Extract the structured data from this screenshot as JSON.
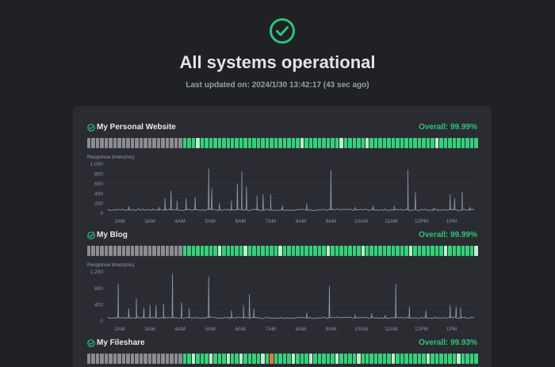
{
  "hero": {
    "title": "All systems operational",
    "updated": "Last updated on: 2024/1/30 13:42:17 (43 sec ago)",
    "icon": "check-circle-icon",
    "accent": "#2fc27a"
  },
  "chart_axis": {
    "ylabel": "Response times(ms)",
    "x_ticks": [
      "2AM",
      "3AM",
      "4AM",
      "5AM",
      "6AM",
      "7AM",
      "8AM",
      "9AM",
      "10AM",
      "11AM",
      "12PM",
      "1PM"
    ]
  },
  "monitors": [
    {
      "name": "My Personal Website",
      "overall": "Overall: 99.99%",
      "status_icon": "check-circle-icon",
      "heartbeat": {
        "empty_count": 22,
        "up_colors": "#35d07a",
        "light_positions": [
          3,
          27,
          36,
          42,
          58,
          70
        ]
      }
    },
    {
      "name": "My Blog",
      "overall": "Overall: 99.99%",
      "status_icon": "check-circle-icon",
      "heartbeat": {
        "empty_count": 22,
        "up_colors": "#35d07a",
        "light_positions": [
          8,
          14,
          22,
          33,
          41,
          52,
          60,
          67
        ]
      }
    },
    {
      "name": "My Fileshare",
      "overall": "Overall: 99.93%",
      "status_icon": "check-circle-icon",
      "heartbeat": {
        "empty_count": 22,
        "up_colors": "#35d07a",
        "light_positions": [
          2,
          6,
          10,
          13,
          18,
          25,
          29,
          35,
          40,
          48,
          56,
          63
        ],
        "warn_positions": [
          20
        ]
      }
    }
  ],
  "chart_data": [
    {
      "type": "line",
      "title": "",
      "ylabel": "Response times(ms)",
      "y_ticks": [
        "1,000",
        "800",
        "600",
        "400",
        "200",
        "0"
      ],
      "ylim": [
        0,
        1000
      ],
      "x_ticks": [
        "2AM",
        "3AM",
        "4AM",
        "5AM",
        "6AM",
        "7AM",
        "8AM",
        "9AM",
        "10AM",
        "11AM",
        "12PM",
        "1PM"
      ],
      "xlim": [
        1.5,
        13.8
      ],
      "baseline": 70,
      "spikes": [
        {
          "x": 2.3,
          "y": 130
        },
        {
          "x": 3.3,
          "y": 120
        },
        {
          "x": 3.5,
          "y": 300
        },
        {
          "x": 3.7,
          "y": 450
        },
        {
          "x": 3.9,
          "y": 250
        },
        {
          "x": 4.2,
          "y": 300
        },
        {
          "x": 4.5,
          "y": 320
        },
        {
          "x": 4.95,
          "y": 900
        },
        {
          "x": 5.05,
          "y": 500
        },
        {
          "x": 5.3,
          "y": 200
        },
        {
          "x": 5.7,
          "y": 250
        },
        {
          "x": 5.9,
          "y": 600
        },
        {
          "x": 6.05,
          "y": 850
        },
        {
          "x": 6.2,
          "y": 550
        },
        {
          "x": 6.55,
          "y": 350
        },
        {
          "x": 6.75,
          "y": 380
        },
        {
          "x": 7.0,
          "y": 380
        },
        {
          "x": 7.4,
          "y": 150
        },
        {
          "x": 8.2,
          "y": 180
        },
        {
          "x": 9.0,
          "y": 880
        },
        {
          "x": 9.8,
          "y": 120
        },
        {
          "x": 10.4,
          "y": 150
        },
        {
          "x": 11.1,
          "y": 140
        },
        {
          "x": 11.55,
          "y": 880
        },
        {
          "x": 11.8,
          "y": 420
        },
        {
          "x": 12.4,
          "y": 110
        },
        {
          "x": 12.95,
          "y": 380
        },
        {
          "x": 13.1,
          "y": 300
        },
        {
          "x": 13.35,
          "y": 430
        },
        {
          "x": 13.6,
          "y": 120
        }
      ]
    },
    {
      "type": "line",
      "title": "",
      "ylabel": "Response times(ms)",
      "y_ticks": [
        "1,200",
        "800",
        "400",
        "0"
      ],
      "ylim": [
        0,
        1200
      ],
      "x_ticks": [
        "2AM",
        "3AM",
        "4AM",
        "5AM",
        "6AM",
        "7AM",
        "8AM",
        "9AM",
        "10AM",
        "11AM",
        "12PM",
        "1PM"
      ],
      "xlim": [
        1.5,
        13.8
      ],
      "baseline": 80,
      "spikes": [
        {
          "x": 1.95,
          "y": 900
        },
        {
          "x": 2.3,
          "y": 300
        },
        {
          "x": 2.55,
          "y": 550
        },
        {
          "x": 2.8,
          "y": 320
        },
        {
          "x": 3.0,
          "y": 380
        },
        {
          "x": 3.2,
          "y": 380
        },
        {
          "x": 3.45,
          "y": 420
        },
        {
          "x": 3.75,
          "y": 1150
        },
        {
          "x": 4.05,
          "y": 450
        },
        {
          "x": 4.3,
          "y": 300
        },
        {
          "x": 4.95,
          "y": 1080
        },
        {
          "x": 5.7,
          "y": 250
        },
        {
          "x": 6.1,
          "y": 380
        },
        {
          "x": 6.3,
          "y": 650
        },
        {
          "x": 6.45,
          "y": 300
        },
        {
          "x": 8.2,
          "y": 200
        },
        {
          "x": 8.95,
          "y": 850
        },
        {
          "x": 9.8,
          "y": 150
        },
        {
          "x": 10.35,
          "y": 180
        },
        {
          "x": 10.8,
          "y": 140
        },
        {
          "x": 11.15,
          "y": 900
        },
        {
          "x": 11.6,
          "y": 350
        },
        {
          "x": 12.15,
          "y": 250
        },
        {
          "x": 12.95,
          "y": 380
        },
        {
          "x": 13.15,
          "y": 350
        },
        {
          "x": 13.3,
          "y": 320
        }
      ]
    }
  ]
}
